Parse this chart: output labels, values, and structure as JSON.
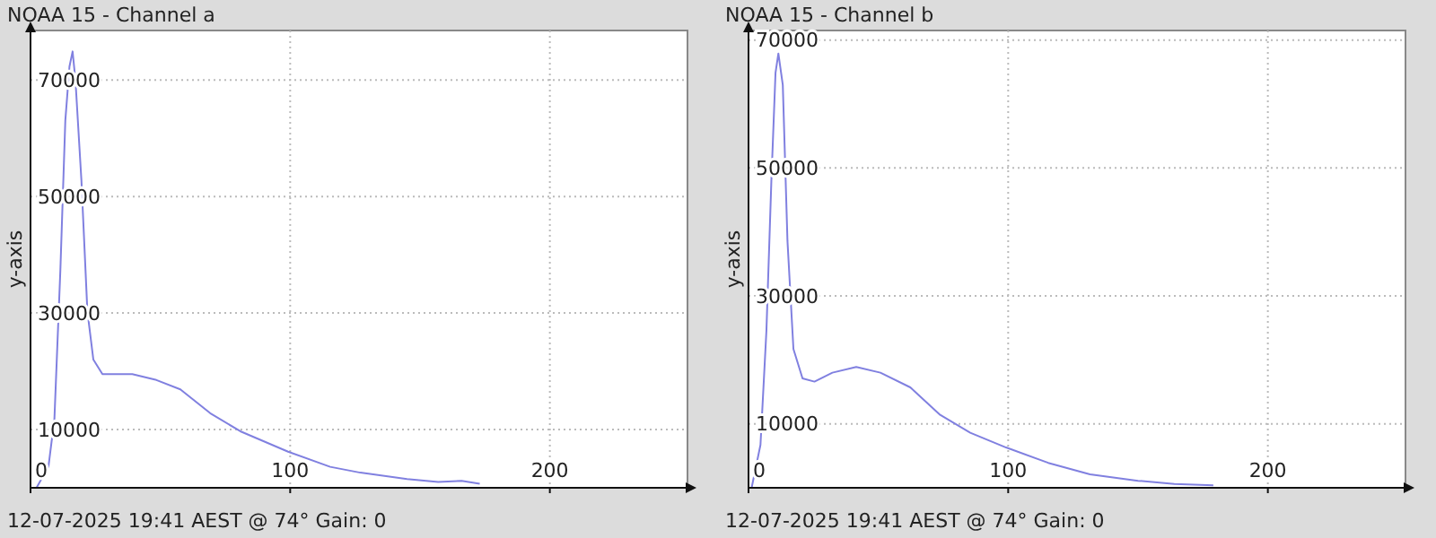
{
  "chart_data": [
    {
      "type": "line",
      "title": "NOAA 15 - Channel a",
      "ylabel": "y-axis",
      "annotations": [
        "12-07-2025 19:41 AEST @ 74° Gain: 0"
      ],
      "xlim": [
        0,
        253
      ],
      "ylim": [
        0,
        78500
      ],
      "xticks": [
        0,
        100,
        200
      ],
      "yticks": [
        10000,
        30000,
        50000,
        70000
      ],
      "grid": true,
      "series": [
        {
          "color": "#8080e0",
          "x": [
            2.3,
            6.9,
            9.2,
            11.5,
            13.4,
            15,
            16.2,
            17.3,
            19.6,
            21.9,
            24.2,
            27.7,
            39.2,
            48.5,
            57.7,
            69.2,
            80.8,
            99.2,
            115.4,
            127,
            145,
            157,
            166,
            173
          ],
          "values": [
            0,
            3600,
            11800,
            37400,
            63000,
            72300,
            74900,
            70000,
            52800,
            30300,
            22000,
            19500,
            19500,
            18500,
            16900,
            12800,
            9700,
            6200,
            3600,
            2600,
            1500,
            1000,
            1200,
            700
          ]
        }
      ]
    },
    {
      "type": "line",
      "title": "NOAA 15 - Channel b",
      "ylabel": "y-axis",
      "annotations": [
        "12-07-2025 19:41 AEST @ 74° Gain: 0"
      ],
      "xlim": [
        0,
        253
      ],
      "ylim": [
        0,
        71500
      ],
      "xticks": [
        0,
        100,
        200
      ],
      "yticks": [
        10000,
        30000,
        50000,
        70000
      ],
      "grid": true,
      "series": [
        {
          "color": "#8080e0",
          "x": [
            1.2,
            4.6,
            6.9,
            8.8,
            10.4,
            11.5,
            13.2,
            15,
            17.3,
            20.8,
            25.4,
            32.3,
            41.5,
            50.8,
            62.3,
            73.8,
            85.4,
            99.2,
            115.4,
            131.5,
            150,
            164,
            179
          ],
          "values": [
            0,
            6700,
            24600,
            48000,
            64900,
            67900,
            63000,
            38600,
            21700,
            17100,
            16600,
            18000,
            18900,
            18000,
            15700,
            11400,
            8600,
            6300,
            3900,
            2100,
            1100,
            600,
            400
          ]
        }
      ]
    }
  ]
}
